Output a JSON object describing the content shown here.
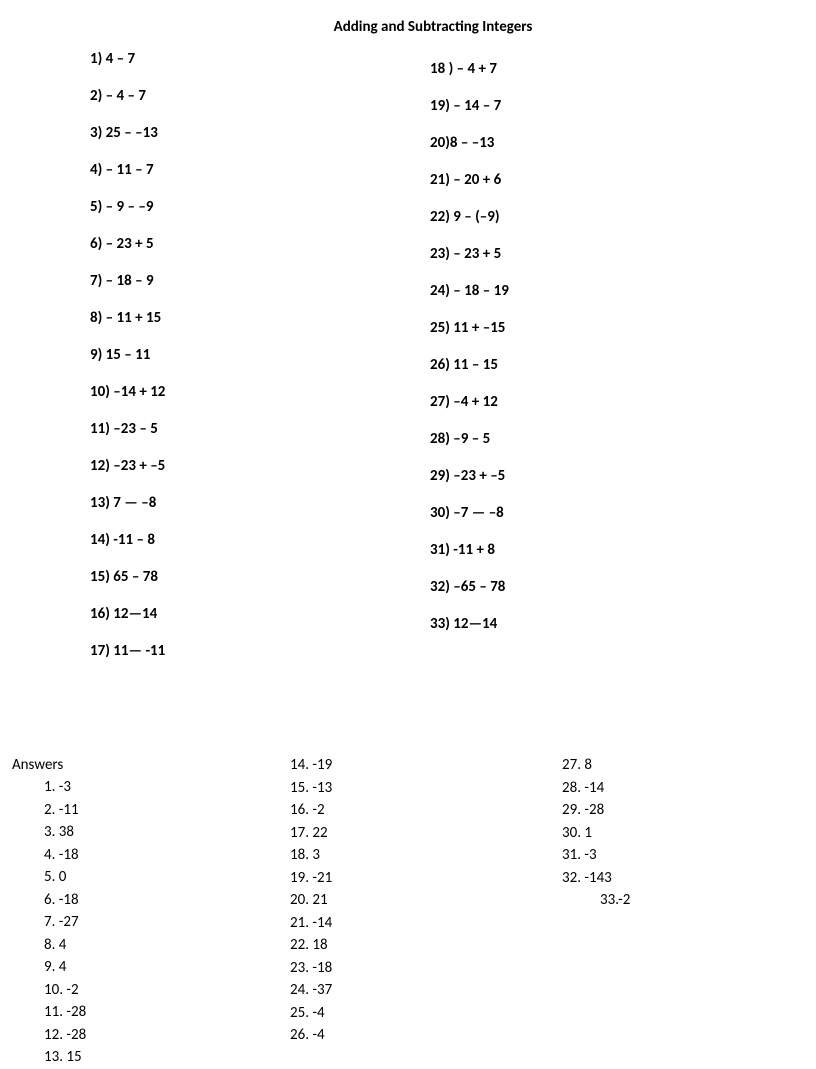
{
  "title": "Adding and Subtracting Integers",
  "fontsize_title": 15,
  "fontsize_problem": 15,
  "fontsize_answer": 15,
  "text_color": "#000000",
  "background_color": "#ffffff",
  "problems_left": [
    "1) 4 – 7",
    "2) – 4 – 7",
    "3) 25 –  –13",
    "4) – 11 – 7",
    "5) – 9 –  –9",
    "6) – 23 + 5",
    "7) – 18 – 9",
    "8) – 11 + 15",
    "9)  15 – 11",
    "10)  –14 + 12",
    "11)  –23 – 5",
    "12)  –23 +  –5",
    "13)  7 —  –8",
    "14)  -11 – 8",
    "15) 65 – 78",
    "16)  12—14",
    "17) 11—   -11"
  ],
  "problems_right": [
    "18 ) –  4 + 7",
    "19) – 14 – 7",
    "20)8 –  –13",
    "21) – 20 + 6",
    "22)  9 – (–9)",
    "23) – 23 + 5",
    "24) – 18 – 19",
    "25)   11 + –15",
    "26)  11 – 15",
    "27)  –4 + 12",
    "28)  –9 – 5",
    "29)  –23 +  –5",
    "30)  –7 —  –8",
    "31)  -11 + 8",
    "32) –65 – 78",
    "33) 12—14"
  ],
  "answers_label": "Answers",
  "answers_col1": [
    "1.   -3",
    "2.   -11",
    "3.   38",
    "4.   -18",
    "5.   0",
    "6.   -18",
    "7.   -27",
    "8.   4",
    "9.   4",
    "10. -2",
    "11. -28",
    "12. -28",
    "13. 15"
  ],
  "answers_col2": [
    "14. -19",
    "15. -13",
    "16. -2",
    "17. 22",
    "18. 3",
    "19. -21",
    "20. 21",
    "21. -14",
    "22. 18",
    "23. -18",
    "24. -37",
    "25. -4",
    "26. -4"
  ],
  "answers_col3": [
    "27. 8",
    "28.  -14",
    "29. -28",
    "30. 1",
    "31. -3",
    "32. -143"
  ],
  "answers_col3_last": "33.-2"
}
